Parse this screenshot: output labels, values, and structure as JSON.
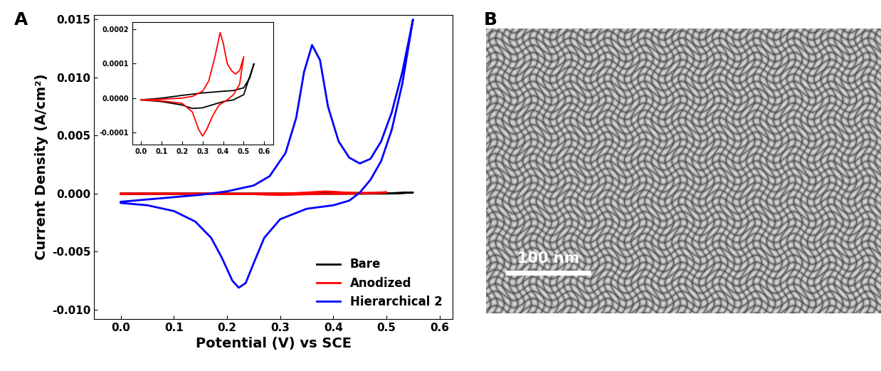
{
  "chart_data": [
    {
      "type": "line",
      "title": "A",
      "x_label": "Potential (V) vs SCE",
      "y_label": "Current Density (A/cm²)",
      "xlim": [
        -0.05,
        0.625
      ],
      "xticks": [
        {
          "value": 0.0,
          "label": "0.0"
        },
        {
          "value": 0.1,
          "label": "0.1"
        },
        {
          "value": 0.2,
          "label": "0.2"
        },
        {
          "value": 0.3,
          "label": "0.3"
        },
        {
          "value": 0.4,
          "label": "0.4"
        },
        {
          "value": 0.5,
          "label": "0.5"
        },
        {
          "value": 0.6,
          "label": "0.6"
        }
      ],
      "ylim": [
        -0.0108,
        0.0154
      ],
      "yticks": [
        {
          "value": -0.01,
          "label": "-0.010"
        },
        {
          "value": -0.005,
          "label": "-0.005"
        },
        {
          "value": 0.0,
          "label": "0.000"
        },
        {
          "value": 0.005,
          "label": "0.005"
        },
        {
          "value": 0.01,
          "label": "0.010"
        },
        {
          "value": 0.015,
          "label": "0.015"
        }
      ],
      "legend": "lower right",
      "series": [
        {
          "name": "Bare",
          "color": "#000000",
          "x": [
            0.0,
            0.1,
            0.2,
            0.3,
            0.4,
            0.45,
            0.5,
            0.53,
            0.55,
            0.5,
            0.45,
            0.4,
            0.3,
            0.25,
            0.2,
            0.1,
            0.0
          ],
          "values": [
            -5e-06,
            0.0,
            8e-06,
            1.5e-05,
            2e-05,
            2.2e-05,
            3e-05,
            6e-05,
            0.0001,
            1e-05,
            -5e-06,
            -1e-05,
            -2.8e-05,
            -3e-05,
            -2e-05,
            -1e-05,
            -5e-06
          ]
        },
        {
          "name": "Anodized",
          "color": "#ff0000",
          "x": [
            0.0,
            0.1,
            0.2,
            0.25,
            0.3,
            0.33,
            0.36,
            0.385,
            0.4,
            0.42,
            0.44,
            0.46,
            0.48,
            0.5,
            0.48,
            0.45,
            0.42,
            0.38,
            0.35,
            0.32,
            0.3,
            0.28,
            0.25,
            0.2,
            0.1,
            0.0
          ],
          "values": [
            -5e-06,
            -3e-06,
            0.0,
            5e-06,
            2e-05,
            5e-05,
            0.00012,
            0.00019,
            0.00016,
            0.0001,
            8e-05,
            7e-05,
            8e-05,
            0.00012,
            4e-05,
            1e-05,
            -5e-06,
            -2e-05,
            -5e-05,
            -9e-05,
            -0.00011,
            -9e-05,
            -4e-05,
            -1.5e-05,
            -8e-06,
            -5e-06
          ]
        },
        {
          "name": "Hierarchical 2",
          "color": "#0000ff",
          "x": [
            0.0,
            0.05,
            0.1,
            0.15,
            0.2,
            0.25,
            0.28,
            0.31,
            0.33,
            0.345,
            0.36,
            0.375,
            0.39,
            0.41,
            0.43,
            0.45,
            0.47,
            0.49,
            0.51,
            0.53,
            0.55,
            0.53,
            0.51,
            0.49,
            0.47,
            0.45,
            0.43,
            0.4,
            0.35,
            0.3,
            0.27,
            0.25,
            0.235,
            0.222,
            0.21,
            0.19,
            0.17,
            0.14,
            0.1,
            0.05,
            0.0
          ],
          "values": [
            -0.0007,
            -0.0005,
            -0.0003,
            -0.0001,
            0.0002,
            0.0007,
            0.0015,
            0.0035,
            0.0065,
            0.0105,
            0.0128,
            0.0115,
            0.0075,
            0.0045,
            0.0031,
            0.0026,
            0.003,
            0.0045,
            0.007,
            0.0105,
            0.015,
            0.0095,
            0.0055,
            0.0028,
            0.0012,
            0.0001,
            -0.0006,
            -0.001,
            -0.0013,
            -0.0022,
            -0.0038,
            -0.006,
            -0.0077,
            -0.0081,
            -0.0075,
            -0.0055,
            -0.0038,
            -0.0024,
            -0.0015,
            -0.001,
            -0.0008
          ]
        }
      ]
    },
    {
      "type": "line",
      "xlim": [
        -0.043,
        0.643
      ],
      "xticks": [
        {
          "value": 0.0,
          "label": "0.0"
        },
        {
          "value": 0.1,
          "label": "0.1"
        },
        {
          "value": 0.2,
          "label": "0.2"
        },
        {
          "value": 0.3,
          "label": "0.3"
        },
        {
          "value": 0.4,
          "label": "0.4"
        },
        {
          "value": 0.5,
          "label": "0.5"
        },
        {
          "value": 0.6,
          "label": "0.6"
        }
      ],
      "ylim": [
        -0.000135,
        0.00022
      ],
      "yticks": [
        {
          "value": -0.0001,
          "label": "-0.0001"
        },
        {
          "value": 0.0,
          "label": "0.0000"
        },
        {
          "value": 0.0001,
          "label": "0.0001"
        },
        {
          "value": 0.0002,
          "label": "0.0002"
        }
      ],
      "series": [
        {
          "name": "Bare",
          "color": "#000000",
          "x": [
            0.0,
            0.1,
            0.2,
            0.3,
            0.4,
            0.45,
            0.5,
            0.53,
            0.55,
            0.5,
            0.45,
            0.4,
            0.3,
            0.25,
            0.2,
            0.1,
            0.0
          ],
          "values": [
            -5e-06,
            0.0,
            8e-06,
            1.5e-05,
            2e-05,
            2.2e-05,
            3e-05,
            6e-05,
            0.0001,
            1e-05,
            -5e-06,
            -1e-05,
            -2.8e-05,
            -3e-05,
            -2e-05,
            -1e-05,
            -5e-06
          ]
        },
        {
          "name": "Anodized",
          "color": "#ff0000",
          "x": [
            0.0,
            0.1,
            0.2,
            0.25,
            0.3,
            0.33,
            0.36,
            0.385,
            0.4,
            0.42,
            0.44,
            0.46,
            0.48,
            0.5,
            0.48,
            0.45,
            0.42,
            0.38,
            0.35,
            0.32,
            0.3,
            0.28,
            0.25,
            0.2,
            0.1,
            0.0
          ],
          "values": [
            -5e-06,
            -3e-06,
            0.0,
            5e-06,
            2e-05,
            5e-05,
            0.00012,
            0.00019,
            0.00016,
            0.0001,
            8e-05,
            7e-05,
            8e-05,
            0.00012,
            4e-05,
            1e-05,
            -5e-06,
            -2e-05,
            -5e-05,
            -9e-05,
            -0.00011,
            -9e-05,
            -4e-05,
            -1.5e-05,
            -8e-06,
            -5e-06
          ]
        }
      ]
    }
  ],
  "image": {
    "type": "micrograph",
    "title": "B",
    "scale_bar": "100 nm"
  }
}
